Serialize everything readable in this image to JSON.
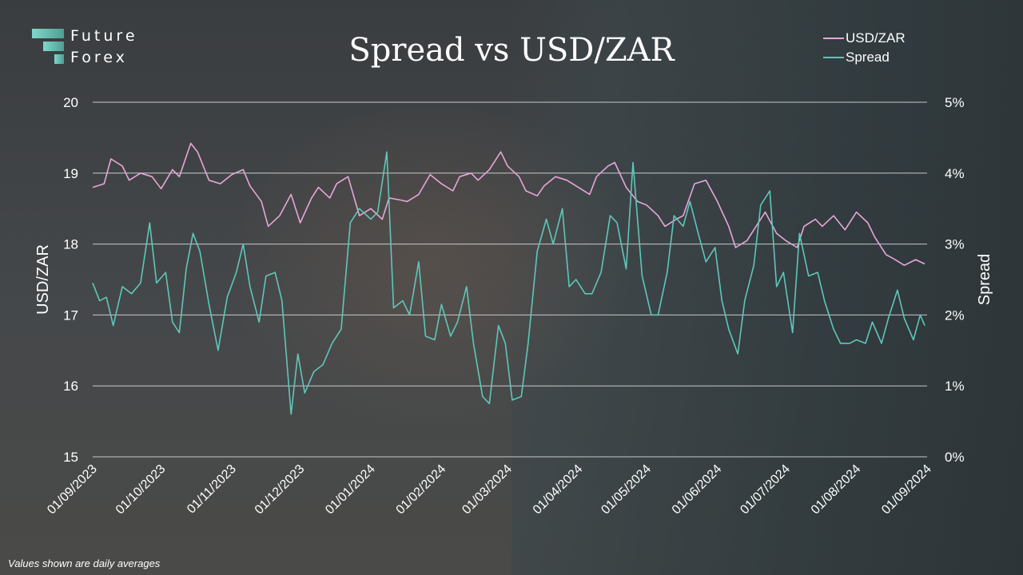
{
  "brand": {
    "line1": "Future",
    "line2": "Forex"
  },
  "footnote": "Values shown are daily averages",
  "colors": {
    "usdzar": "#e8a6d8",
    "spread": "#5fc7b8",
    "grid": "#d8d8d8"
  },
  "chart_data": {
    "type": "line",
    "title": "Spread vs USD/ZAR",
    "ylabel": "USD/ZAR",
    "y2label": "Spread",
    "ylim": [
      15,
      20
    ],
    "y2lim": [
      0,
      5
    ],
    "y_ticks": [
      "15",
      "16",
      "17",
      "18",
      "19",
      "20"
    ],
    "y2_ticks": [
      "0%",
      "1%",
      "2%",
      "3%",
      "4%",
      "5%"
    ],
    "x_ticks": [
      "01/09/2023",
      "01/10/2023",
      "01/11/2023",
      "01/12/2023",
      "01/01/2024",
      "01/02/2024",
      "01/03/2024",
      "01/04/2024",
      "01/05/2024",
      "01/06/2024",
      "01/07/2024",
      "01/08/2024",
      "01/09/2024"
    ],
    "grid": true,
    "legend_position": "top-right",
    "series": [
      {
        "name": "USD/ZAR",
        "axis": "left",
        "points": [
          [
            "01/09/2023",
            18.8
          ],
          [
            "06/09/2023",
            18.85
          ],
          [
            "09/09/2023",
            19.2
          ],
          [
            "14/09/2023",
            19.1
          ],
          [
            "17/09/2023",
            18.9
          ],
          [
            "22/09/2023",
            19.0
          ],
          [
            "27/09/2023",
            18.95
          ],
          [
            "01/10/2023",
            18.78
          ],
          [
            "06/10/2023",
            19.05
          ],
          [
            "09/10/2023",
            18.95
          ],
          [
            "14/10/2023",
            19.42
          ],
          [
            "17/10/2023",
            19.3
          ],
          [
            "22/10/2023",
            18.9
          ],
          [
            "27/10/2023",
            18.85
          ],
          [
            "01/11/2023",
            18.98
          ],
          [
            "06/11/2023",
            19.05
          ],
          [
            "09/11/2023",
            18.82
          ],
          [
            "14/11/2023",
            18.6
          ],
          [
            "17/11/2023",
            18.25
          ],
          [
            "22/11/2023",
            18.4
          ],
          [
            "27/11/2023",
            18.7
          ],
          [
            "01/12/2023",
            18.3
          ],
          [
            "06/12/2023",
            18.65
          ],
          [
            "09/12/2023",
            18.8
          ],
          [
            "14/12/2023",
            18.65
          ],
          [
            "17/12/2023",
            18.85
          ],
          [
            "22/12/2023",
            18.95
          ],
          [
            "27/12/2023",
            18.4
          ],
          [
            "01/01/2024",
            18.5
          ],
          [
            "06/01/2024",
            18.35
          ],
          [
            "09/01/2024",
            18.65
          ],
          [
            "14/01/2024",
            18.62
          ],
          [
            "17/01/2024",
            18.6
          ],
          [
            "22/01/2024",
            18.7
          ],
          [
            "27/01/2024",
            18.98
          ],
          [
            "01/02/2024",
            18.85
          ],
          [
            "06/02/2024",
            18.75
          ],
          [
            "09/02/2024",
            18.95
          ],
          [
            "14/02/2024",
            19.0
          ],
          [
            "17/02/2024",
            18.9
          ],
          [
            "22/02/2024",
            19.05
          ],
          [
            "27/02/2024",
            19.3
          ],
          [
            "01/03/2024",
            19.1
          ],
          [
            "06/03/2024",
            18.95
          ],
          [
            "09/03/2024",
            18.75
          ],
          [
            "14/03/2024",
            18.68
          ],
          [
            "17/03/2024",
            18.82
          ],
          [
            "22/03/2024",
            18.95
          ],
          [
            "27/03/2024",
            18.9
          ],
          [
            "01/04/2024",
            18.8
          ],
          [
            "06/04/2024",
            18.7
          ],
          [
            "09/04/2024",
            18.95
          ],
          [
            "14/04/2024",
            19.1
          ],
          [
            "17/04/2024",
            19.15
          ],
          [
            "22/04/2024",
            18.8
          ],
          [
            "27/04/2024",
            18.6
          ],
          [
            "01/05/2024",
            18.55
          ],
          [
            "06/05/2024",
            18.4
          ],
          [
            "09/05/2024",
            18.25
          ],
          [
            "14/05/2024",
            18.35
          ],
          [
            "17/05/2024",
            18.4
          ],
          [
            "22/05/2024",
            18.85
          ],
          [
            "27/05/2024",
            18.9
          ],
          [
            "01/06/2024",
            18.6
          ],
          [
            "06/06/2024",
            18.25
          ],
          [
            "09/06/2024",
            17.95
          ],
          [
            "14/06/2024",
            18.05
          ],
          [
            "17/06/2024",
            18.2
          ],
          [
            "22/06/2024",
            18.45
          ],
          [
            "27/06/2024",
            18.15
          ],
          [
            "01/07/2024",
            18.05
          ],
          [
            "06/07/2024",
            17.95
          ],
          [
            "09/07/2024",
            18.25
          ],
          [
            "14/07/2024",
            18.35
          ],
          [
            "17/07/2024",
            18.25
          ],
          [
            "22/07/2024",
            18.4
          ],
          [
            "27/07/2024",
            18.2
          ],
          [
            "01/08/2024",
            18.45
          ],
          [
            "06/08/2024",
            18.3
          ],
          [
            "09/08/2024",
            18.1
          ],
          [
            "14/08/2024",
            17.85
          ],
          [
            "17/08/2024",
            17.8
          ],
          [
            "22/08/2024",
            17.7
          ],
          [
            "27/08/2024",
            17.78
          ],
          [
            "31/08/2024",
            17.72
          ]
        ]
      },
      {
        "name": "Spread",
        "axis": "right",
        "points": [
          [
            "01/09/2023",
            2.45
          ],
          [
            "04/09/2023",
            2.2
          ],
          [
            "07/09/2023",
            2.25
          ],
          [
            "10/09/2023",
            1.85
          ],
          [
            "14/09/2023",
            2.4
          ],
          [
            "18/09/2023",
            2.3
          ],
          [
            "22/09/2023",
            2.45
          ],
          [
            "26/09/2023",
            3.3
          ],
          [
            "29/09/2023",
            2.45
          ],
          [
            "03/10/2023",
            2.6
          ],
          [
            "06/10/2023",
            1.9
          ],
          [
            "09/10/2023",
            1.75
          ],
          [
            "12/10/2023",
            2.65
          ],
          [
            "15/10/2023",
            3.15
          ],
          [
            "18/10/2023",
            2.9
          ],
          [
            "22/10/2023",
            2.15
          ],
          [
            "26/10/2023",
            1.5
          ],
          [
            "30/10/2023",
            2.25
          ],
          [
            "03/11/2023",
            2.6
          ],
          [
            "06/11/2023",
            3.0
          ],
          [
            "09/11/2023",
            2.4
          ],
          [
            "13/11/2023",
            1.9
          ],
          [
            "16/11/2023",
            2.55
          ],
          [
            "20/11/2023",
            2.6
          ],
          [
            "23/11/2023",
            2.2
          ],
          [
            "27/11/2023",
            0.6
          ],
          [
            "30/11/2023",
            1.45
          ],
          [
            "03/12/2023",
            0.9
          ],
          [
            "07/12/2023",
            1.2
          ],
          [
            "11/12/2023",
            1.3
          ],
          [
            "15/12/2023",
            1.6
          ],
          [
            "19/12/2023",
            1.8
          ],
          [
            "23/12/2023",
            3.3
          ],
          [
            "27/12/2023",
            3.5
          ],
          [
            "01/01/2024",
            3.35
          ],
          [
            "04/01/2024",
            3.45
          ],
          [
            "08/01/2024",
            4.3
          ],
          [
            "11/01/2024",
            2.1
          ],
          [
            "15/01/2024",
            2.2
          ],
          [
            "18/01/2024",
            2.0
          ],
          [
            "22/01/2024",
            2.75
          ],
          [
            "25/01/2024",
            1.7
          ],
          [
            "29/01/2024",
            1.65
          ],
          [
            "01/02/2024",
            2.15
          ],
          [
            "05/02/2024",
            1.7
          ],
          [
            "08/02/2024",
            1.9
          ],
          [
            "12/02/2024",
            2.4
          ],
          [
            "15/02/2024",
            1.6
          ],
          [
            "19/02/2024",
            0.85
          ],
          [
            "22/02/2024",
            0.75
          ],
          [
            "26/02/2024",
            1.85
          ],
          [
            "29/02/2024",
            1.6
          ],
          [
            "03/03/2024",
            0.8
          ],
          [
            "07/03/2024",
            0.85
          ],
          [
            "10/03/2024",
            1.6
          ],
          [
            "14/03/2024",
            2.9
          ],
          [
            "18/03/2024",
            3.35
          ],
          [
            "21/03/2024",
            3.0
          ],
          [
            "25/03/2024",
            3.5
          ],
          [
            "28/03/2024",
            2.4
          ],
          [
            "31/03/2024",
            2.5
          ],
          [
            "04/04/2024",
            2.3
          ],
          [
            "07/04/2024",
            2.3
          ],
          [
            "11/04/2024",
            2.6
          ],
          [
            "15/04/2024",
            3.4
          ],
          [
            "18/04/2024",
            3.3
          ],
          [
            "22/04/2024",
            2.65
          ],
          [
            "25/04/2024",
            4.15
          ],
          [
            "29/04/2024",
            2.55
          ],
          [
            "03/05/2024",
            2.0
          ],
          [
            "06/05/2024",
            2.0
          ],
          [
            "10/05/2024",
            2.6
          ],
          [
            "13/05/2024",
            3.4
          ],
          [
            "17/05/2024",
            3.25
          ],
          [
            "20/05/2024",
            3.6
          ],
          [
            "24/05/2024",
            3.1
          ],
          [
            "27/05/2024",
            2.75
          ],
          [
            "31/05/2024",
            2.95
          ],
          [
            "03/06/2024",
            2.2
          ],
          [
            "06/06/2024",
            1.8
          ],
          [
            "10/06/2024",
            1.45
          ],
          [
            "13/06/2024",
            2.2
          ],
          [
            "17/06/2024",
            2.7
          ],
          [
            "20/06/2024",
            3.55
          ],
          [
            "24/06/2024",
            3.75
          ],
          [
            "27/06/2024",
            2.4
          ],
          [
            "30/06/2024",
            2.6
          ],
          [
            "04/07/2024",
            1.75
          ],
          [
            "07/07/2024",
            3.15
          ],
          [
            "11/07/2024",
            2.55
          ],
          [
            "15/07/2024",
            2.6
          ],
          [
            "18/07/2024",
            2.2
          ],
          [
            "22/07/2024",
            1.8
          ],
          [
            "25/07/2024",
            1.6
          ],
          [
            "29/07/2024",
            1.6
          ],
          [
            "01/08/2024",
            1.65
          ],
          [
            "05/08/2024",
            1.6
          ],
          [
            "08/08/2024",
            1.9
          ],
          [
            "12/08/2024",
            1.6
          ],
          [
            "15/08/2024",
            1.95
          ],
          [
            "19/08/2024",
            2.35
          ],
          [
            "22/08/2024",
            1.95
          ],
          [
            "26/08/2024",
            1.65
          ],
          [
            "29/08/2024",
            2.0
          ],
          [
            "31/08/2024",
            1.85
          ]
        ]
      }
    ]
  }
}
